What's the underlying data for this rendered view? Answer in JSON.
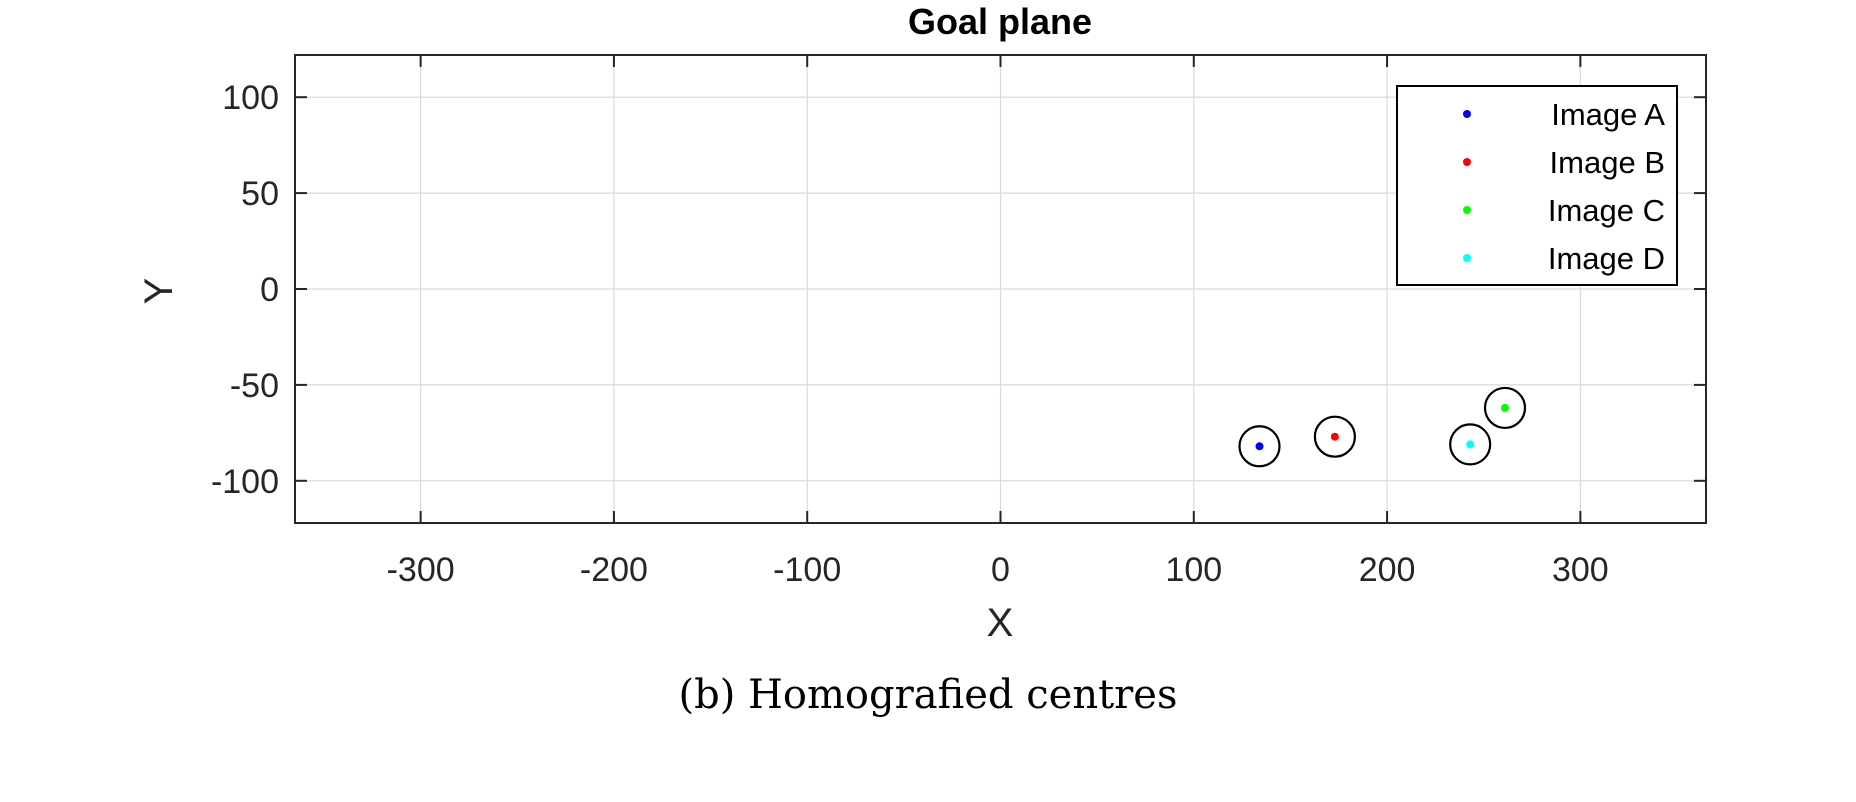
{
  "chart_data": {
    "type": "scatter",
    "title": "Goal plane",
    "xlabel": "X",
    "ylabel": "Y",
    "xlim": [
      -365,
      365
    ],
    "ylim": [
      -122,
      122
    ],
    "xticks": [
      -300,
      -200,
      -100,
      0,
      100,
      200,
      300
    ],
    "yticks": [
      -100,
      -50,
      0,
      50,
      100
    ],
    "xtick_labels": [
      "-300",
      "-200",
      "-100",
      "0",
      "100",
      "200",
      "300"
    ],
    "ytick_labels": [
      "-100",
      "-50",
      "0",
      "50",
      "100"
    ],
    "grid": true,
    "legend_position": "top-right",
    "series": [
      {
        "name": "Image A",
        "color": "#0000ff",
        "x": [
          134
        ],
        "y": [
          -82
        ]
      },
      {
        "name": "Image B",
        "color": "#ff0000",
        "x": [
          173
        ],
        "y": [
          -77
        ]
      },
      {
        "name": "Image C",
        "color": "#00ff00",
        "x": [
          261
        ],
        "y": [
          -62
        ]
      },
      {
        "name": "Image D",
        "color": "#00ffff",
        "x": [
          243
        ],
        "y": [
          -81
        ]
      }
    ],
    "highlight_marker": "circle"
  },
  "caption": "(b) Homografied centres"
}
